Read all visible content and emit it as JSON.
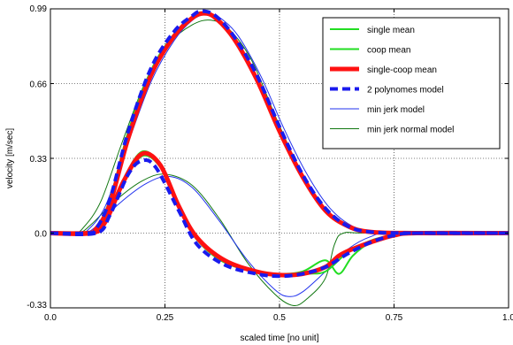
{
  "chart_data": {
    "type": "line",
    "title": "",
    "xlabel": "scaled time [no unit]",
    "ylabel": "velocity [m/sec]",
    "xlim": [
      0,
      1
    ],
    "ylim": [
      -0.33,
      0.99
    ],
    "xticks": [
      0,
      0.25,
      0.5,
      0.75,
      1
    ],
    "xtick_labels": [
      "0.0",
      "0.25",
      "0.5",
      "0.75",
      "1.0"
    ],
    "yticks": [
      -0.33,
      0,
      0.33,
      0.66,
      0.99
    ],
    "ytick_labels": [
      "-0.33",
      "0.0",
      "0.33",
      "0.66",
      "0.99"
    ],
    "grid": true,
    "legend_position": "top-right",
    "series": [
      {
        "name": "single mean",
        "color": "#22dd22",
        "dash": "",
        "width": 2,
        "curves": [
          [
            [
              0,
              0
            ],
            [
              0.08,
              0
            ],
            [
              0.1,
              0.02
            ],
            [
              0.13,
              0.15
            ],
            [
              0.17,
              0.45
            ],
            [
              0.22,
              0.72
            ],
            [
              0.27,
              0.88
            ],
            [
              0.31,
              0.955
            ],
            [
              0.33,
              0.975
            ],
            [
              0.36,
              0.955
            ],
            [
              0.4,
              0.86
            ],
            [
              0.45,
              0.68
            ],
            [
              0.5,
              0.45
            ],
            [
              0.55,
              0.25
            ],
            [
              0.6,
              0.1
            ],
            [
              0.65,
              0.025
            ],
            [
              0.7,
              0.005
            ],
            [
              0.8,
              0
            ],
            [
              1,
              0
            ]
          ],
          [
            [
              0,
              0
            ],
            [
              0.09,
              0
            ],
            [
              0.12,
              0.05
            ],
            [
              0.16,
              0.24
            ],
            [
              0.2,
              0.36
            ],
            [
              0.24,
              0.3
            ],
            [
              0.28,
              0.12
            ],
            [
              0.32,
              -0.02
            ],
            [
              0.38,
              -0.12
            ],
            [
              0.45,
              -0.17
            ],
            [
              0.5,
              -0.18
            ],
            [
              0.55,
              -0.17
            ],
            [
              0.6,
              -0.12
            ],
            [
              0.63,
              -0.18
            ],
            [
              0.66,
              -0.1
            ],
            [
              0.7,
              -0.04
            ],
            [
              0.75,
              -0.01
            ],
            [
              0.8,
              0
            ],
            [
              1,
              0
            ]
          ]
        ]
      },
      {
        "name": "coop mean",
        "color": "#22dd22",
        "dash": "",
        "width": 2,
        "curves": [
          [
            [
              0,
              0
            ],
            [
              0.09,
              0
            ],
            [
              0.12,
              0.06
            ],
            [
              0.16,
              0.22
            ],
            [
              0.2,
              0.34
            ],
            [
              0.24,
              0.29
            ],
            [
              0.28,
              0.11
            ],
            [
              0.32,
              -0.03
            ],
            [
              0.38,
              -0.13
            ],
            [
              0.45,
              -0.17
            ],
            [
              0.5,
              -0.19
            ],
            [
              0.56,
              -0.18
            ],
            [
              0.6,
              -0.17
            ],
            [
              0.64,
              -0.1
            ],
            [
              0.67,
              -0.06
            ],
            [
              0.72,
              -0.02
            ],
            [
              0.8,
              0
            ],
            [
              1,
              0
            ]
          ]
        ]
      },
      {
        "name": "single-coop mean",
        "color": "#ff1111",
        "dash": "",
        "width": 5,
        "curves": [
          [
            [
              0,
              0
            ],
            [
              0.08,
              0
            ],
            [
              0.1,
              0.02
            ],
            [
              0.13,
              0.13
            ],
            [
              0.17,
              0.42
            ],
            [
              0.22,
              0.7
            ],
            [
              0.27,
              0.87
            ],
            [
              0.31,
              0.95
            ],
            [
              0.335,
              0.97
            ],
            [
              0.36,
              0.95
            ],
            [
              0.4,
              0.86
            ],
            [
              0.45,
              0.68
            ],
            [
              0.5,
              0.45
            ],
            [
              0.55,
              0.25
            ],
            [
              0.6,
              0.1
            ],
            [
              0.65,
              0.03
            ],
            [
              0.7,
              0.005
            ],
            [
              0.8,
              0
            ],
            [
              1,
              0
            ]
          ],
          [
            [
              0,
              0
            ],
            [
              0.09,
              0
            ],
            [
              0.12,
              0.05
            ],
            [
              0.16,
              0.23
            ],
            [
              0.2,
              0.35
            ],
            [
              0.24,
              0.3
            ],
            [
              0.28,
              0.12
            ],
            [
              0.32,
              -0.02
            ],
            [
              0.38,
              -0.12
            ],
            [
              0.45,
              -0.17
            ],
            [
              0.5,
              -0.185
            ],
            [
              0.55,
              -0.18
            ],
            [
              0.6,
              -0.15
            ],
            [
              0.63,
              -0.1
            ],
            [
              0.66,
              -0.07
            ],
            [
              0.7,
              -0.04
            ],
            [
              0.75,
              -0.01
            ],
            [
              0.8,
              0
            ],
            [
              1,
              0
            ]
          ]
        ]
      },
      {
        "name": "2 polynomes model",
        "color": "#1a1aee",
        "dash": "9,5",
        "width": 4,
        "curves": [
          [
            [
              0,
              0
            ],
            [
              0.08,
              0
            ],
            [
              0.1,
              0.02
            ],
            [
              0.13,
              0.15
            ],
            [
              0.17,
              0.45
            ],
            [
              0.22,
              0.73
            ],
            [
              0.27,
              0.89
            ],
            [
              0.31,
              0.96
            ],
            [
              0.33,
              0.98
            ],
            [
              0.36,
              0.96
            ],
            [
              0.4,
              0.87
            ],
            [
              0.45,
              0.7
            ],
            [
              0.5,
              0.47
            ],
            [
              0.55,
              0.26
            ],
            [
              0.6,
              0.11
            ],
            [
              0.65,
              0.03
            ],
            [
              0.7,
              0.005
            ],
            [
              0.8,
              0
            ],
            [
              1,
              0
            ]
          ],
          [
            [
              0,
              0
            ],
            [
              0.1,
              0
            ],
            [
              0.13,
              0.08
            ],
            [
              0.17,
              0.26
            ],
            [
              0.2,
              0.32
            ],
            [
              0.23,
              0.29
            ],
            [
              0.28,
              0.1
            ],
            [
              0.32,
              -0.05
            ],
            [
              0.38,
              -0.14
            ],
            [
              0.45,
              -0.18
            ],
            [
              0.5,
              -0.19
            ],
            [
              0.55,
              -0.18
            ],
            [
              0.6,
              -0.15
            ],
            [
              0.65,
              -0.09
            ],
            [
              0.7,
              -0.04
            ],
            [
              0.75,
              -0.01
            ],
            [
              0.8,
              0
            ],
            [
              1,
              0
            ]
          ]
        ]
      },
      {
        "name": "min jerk model",
        "color": "#2233ee",
        "dash": "",
        "width": 1,
        "curves": [
          [
            [
              0,
              0
            ],
            [
              0.06,
              0
            ],
            [
              0.08,
              0.01
            ],
            [
              0.12,
              0.12
            ],
            [
              0.17,
              0.4
            ],
            [
              0.22,
              0.67
            ],
            [
              0.27,
              0.85
            ],
            [
              0.31,
              0.94
            ],
            [
              0.34,
              0.965
            ],
            [
              0.37,
              0.95
            ],
            [
              0.41,
              0.87
            ],
            [
              0.46,
              0.69
            ],
            [
              0.51,
              0.46
            ],
            [
              0.56,
              0.26
            ],
            [
              0.61,
              0.11
            ],
            [
              0.66,
              0.03
            ],
            [
              0.71,
              0.005
            ],
            [
              0.78,
              0
            ],
            [
              1,
              0
            ]
          ],
          [
            [
              0,
              0
            ],
            [
              0.07,
              0
            ],
            [
              0.1,
              0.03
            ],
            [
              0.15,
              0.13
            ],
            [
              0.21,
              0.22
            ],
            [
              0.26,
              0.25
            ],
            [
              0.31,
              0.2
            ],
            [
              0.37,
              0.05
            ],
            [
              0.43,
              -0.12
            ],
            [
              0.49,
              -0.25
            ],
            [
              0.52,
              -0.28
            ],
            [
              0.55,
              -0.26
            ],
            [
              0.6,
              -0.17
            ],
            [
              0.65,
              -0.07
            ],
            [
              0.7,
              -0.015
            ],
            [
              0.75,
              0
            ],
            [
              1,
              0
            ]
          ]
        ]
      },
      {
        "name": "min jerk normal model",
        "color": "#117711",
        "dash": "",
        "width": 1,
        "curves": [
          [
            [
              0,
              0
            ],
            [
              0.05,
              0
            ],
            [
              0.07,
              0.02
            ],
            [
              0.11,
              0.14
            ],
            [
              0.16,
              0.42
            ],
            [
              0.21,
              0.68
            ],
            [
              0.26,
              0.84
            ],
            [
              0.31,
              0.92
            ],
            [
              0.35,
              0.94
            ],
            [
              0.39,
              0.9
            ],
            [
              0.44,
              0.76
            ],
            [
              0.49,
              0.52
            ],
            [
              0.54,
              0.3
            ],
            [
              0.59,
              0.13
            ],
            [
              0.64,
              0.04
            ],
            [
              0.69,
              0.01
            ],
            [
              0.76,
              0
            ],
            [
              1,
              0
            ]
          ],
          [
            [
              0,
              0
            ],
            [
              0.06,
              0
            ],
            [
              0.09,
              0.04
            ],
            [
              0.14,
              0.14
            ],
            [
              0.2,
              0.23
            ],
            [
              0.25,
              0.26
            ],
            [
              0.31,
              0.21
            ],
            [
              0.37,
              0.06
            ],
            [
              0.43,
              -0.13
            ],
            [
              0.49,
              -0.27
            ],
            [
              0.53,
              -0.32
            ],
            [
              0.56,
              -0.29
            ],
            [
              0.6,
              -0.2
            ],
            [
              0.62,
              -0.05
            ],
            [
              0.64,
              0.0
            ],
            [
              0.7,
              0
            ],
            [
              1,
              0
            ]
          ]
        ]
      }
    ]
  }
}
